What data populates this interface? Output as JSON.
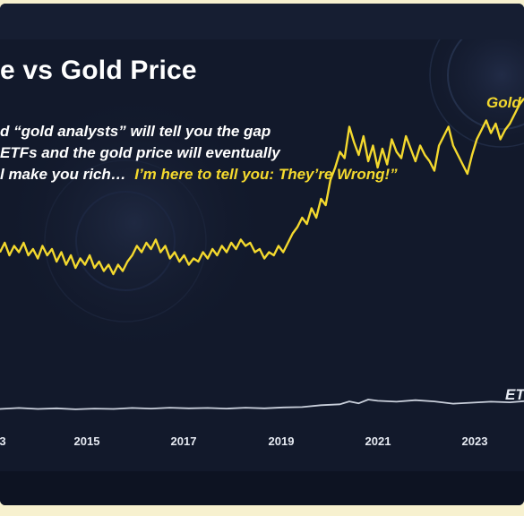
{
  "title": "e vs Gold Price",
  "quote": {
    "line1": "d “gold analysts” will tell you the gap",
    "line2": "ETFs and the gold price will eventually",
    "line3_white": "l make you rich…",
    "line3_yellow": "I’m here to tell you: They’re Wrong!”"
  },
  "legend": {
    "gold": "Gold",
    "etf": "ET"
  },
  "colors": {
    "background": "#12192b",
    "gold_line": "#f4d92e",
    "etf_line": "#c9cfdb",
    "frame": "#f7f1cf"
  },
  "chart_data": {
    "type": "line",
    "title": "e vs Gold Price",
    "xlabel": "",
    "ylabel": "",
    "x_ticks": [
      "3",
      "2015",
      "2017",
      "2019",
      "2021",
      "2023"
    ],
    "xlim": [
      2012.95,
      2024.05
    ],
    "ylim": [
      0,
      100
    ],
    "grid": false,
    "series": [
      {
        "name": "Gold",
        "x": [
          2012.95,
          2013.05,
          2013.15,
          2013.25,
          2013.35,
          2013.45,
          2013.55,
          2013.65,
          2013.75,
          2013.85,
          2013.95,
          2014.05,
          2014.15,
          2014.25,
          2014.35,
          2014.45,
          2014.55,
          2014.65,
          2014.75,
          2014.85,
          2014.95,
          2015.05,
          2015.15,
          2015.25,
          2015.35,
          2015.45,
          2015.55,
          2015.65,
          2015.75,
          2015.85,
          2015.95,
          2016.05,
          2016.15,
          2016.25,
          2016.35,
          2016.45,
          2016.55,
          2016.65,
          2016.75,
          2016.85,
          2016.95,
          2017.05,
          2017.15,
          2017.25,
          2017.35,
          2017.45,
          2017.55,
          2017.65,
          2017.75,
          2017.85,
          2017.95,
          2018.05,
          2018.15,
          2018.25,
          2018.35,
          2018.45,
          2018.55,
          2018.65,
          2018.75,
          2018.85,
          2018.95,
          2019.05,
          2019.15,
          2019.25,
          2019.35,
          2019.45,
          2019.55,
          2019.65,
          2019.75,
          2019.85,
          2019.95,
          2020.05,
          2020.15,
          2020.25,
          2020.35,
          2020.45,
          2020.55,
          2020.65,
          2020.75,
          2020.85,
          2020.95,
          2021.05,
          2021.15,
          2021.25,
          2021.35,
          2021.45,
          2021.55,
          2021.65,
          2021.75,
          2021.85,
          2021.95,
          2022.05,
          2022.15,
          2022.25,
          2022.35,
          2022.45,
          2022.55,
          2022.65,
          2022.75,
          2022.85,
          2022.95,
          2023.05,
          2023.15,
          2023.25,
          2023.35,
          2023.45,
          2023.55,
          2023.65,
          2023.75,
          2023.85,
          2023.95,
          2024.05
        ],
        "values": [
          55,
          58,
          54,
          57,
          55,
          58,
          54,
          56,
          53,
          57,
          54,
          56,
          52,
          55,
          51,
          54,
          50,
          53,
          51,
          54,
          50,
          52,
          49,
          51,
          48,
          51,
          49,
          52,
          54,
          57,
          55,
          58,
          56,
          59,
          55,
          57,
          53,
          55,
          52,
          54,
          51,
          53,
          52,
          55,
          53,
          56,
          54,
          57,
          55,
          58,
          56,
          59,
          57,
          58,
          55,
          56,
          53,
          55,
          54,
          57,
          55,
          58,
          61,
          63,
          66,
          64,
          69,
          66,
          72,
          70,
          78,
          82,
          87,
          85,
          95,
          90,
          86,
          92,
          84,
          89,
          82,
          88,
          83,
          91,
          87,
          85,
          92,
          88,
          84,
          89,
          86,
          84,
          81,
          89,
          92,
          95,
          89,
          86,
          83,
          80,
          86,
          91,
          94,
          97,
          93,
          96,
          91,
          94,
          96,
          99,
          102,
          104
        ]
      },
      {
        "name": "ET",
        "x": [
          2012.95,
          2013.35,
          2013.75,
          2014.15,
          2014.55,
          2014.95,
          2015.35,
          2015.75,
          2016.15,
          2016.55,
          2016.95,
          2017.35,
          2017.75,
          2018.15,
          2018.55,
          2018.95,
          2019.35,
          2019.75,
          2020.15,
          2020.35,
          2020.55,
          2020.75,
          2020.95,
          2021.35,
          2021.75,
          2022.15,
          2022.55,
          2022.95,
          2023.35,
          2023.75,
          2024.05
        ],
        "values": [
          5,
          5.3,
          5,
          5.2,
          4.9,
          5.1,
          5,
          5.3,
          5.1,
          5.4,
          5.2,
          5.3,
          5.1,
          5.4,
          5.2,
          5.5,
          5.6,
          6.2,
          6.5,
          7.4,
          6.8,
          8,
          7.6,
          7.3,
          7.8,
          7.4,
          6.7,
          7,
          7.3,
          7.1,
          7.5
        ]
      }
    ]
  }
}
